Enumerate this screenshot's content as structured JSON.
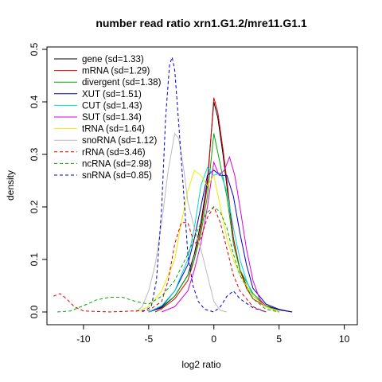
{
  "chart_data": {
    "type": "line",
    "title": "number read ratio xrn1.G1.2/mre11.G1.1",
    "xlabel": "log2 ratio",
    "ylabel": "density",
    "xlim": [
      -12.8,
      11.0
    ],
    "ylim": [
      0.0,
      0.5
    ],
    "xticks": [
      "-10",
      "-5",
      "0",
      "5",
      "10"
    ],
    "xtick_values": [
      -10,
      -5,
      0,
      5,
      10
    ],
    "yticks": [
      "0.0",
      "0.1",
      "0.2",
      "0.3",
      "0.4",
      "0.5"
    ],
    "ytick_values": [
      0.0,
      0.1,
      0.2,
      0.3,
      0.4,
      0.5
    ],
    "grid": false,
    "legend_position": "top-left",
    "series": [
      {
        "name": "gene (sd=1.33)",
        "color": "#000000",
        "dash": false,
        "points": [
          [
            -5,
            0
          ],
          [
            -4,
            0.008
          ],
          [
            -3,
            0.03
          ],
          [
            -2,
            0.07
          ],
          [
            -1.5,
            0.11
          ],
          [
            -1,
            0.17
          ],
          [
            -0.5,
            0.25
          ],
          [
            0,
            0.4
          ],
          [
            0.3,
            0.37
          ],
          [
            0.7,
            0.3
          ],
          [
            1,
            0.24
          ],
          [
            1.5,
            0.14
          ],
          [
            2,
            0.08
          ],
          [
            2.5,
            0.05
          ],
          [
            3,
            0.03
          ],
          [
            4,
            0.012
          ],
          [
            5,
            0.004
          ],
          [
            6,
            0
          ]
        ]
      },
      {
        "name": "mRNA (sd=1.29)",
        "color": "#dd0000",
        "dash": false,
        "points": [
          [
            -4.5,
            0
          ],
          [
            -4,
            0.006
          ],
          [
            -3,
            0.025
          ],
          [
            -2,
            0.06
          ],
          [
            -1.5,
            0.1
          ],
          [
            -1,
            0.16
          ],
          [
            -0.5,
            0.24
          ],
          [
            0,
            0.408
          ],
          [
            0.3,
            0.38
          ],
          [
            0.7,
            0.31
          ],
          [
            1,
            0.25
          ],
          [
            1.5,
            0.14
          ],
          [
            2,
            0.08
          ],
          [
            2.5,
            0.045
          ],
          [
            3,
            0.025
          ],
          [
            4,
            0.01
          ],
          [
            5,
            0
          ]
        ]
      },
      {
        "name": "divergent (sd=1.38)",
        "color": "#00aa00",
        "dash": false,
        "points": [
          [
            -5,
            0
          ],
          [
            -4,
            0.01
          ],
          [
            -3,
            0.03
          ],
          [
            -2,
            0.07
          ],
          [
            -1.5,
            0.1
          ],
          [
            -1,
            0.15
          ],
          [
            -0.5,
            0.22
          ],
          [
            0,
            0.34
          ],
          [
            0.5,
            0.28
          ],
          [
            1,
            0.22
          ],
          [
            1.5,
            0.13
          ],
          [
            2,
            0.08
          ],
          [
            3,
            0.035
          ],
          [
            4,
            0.012
          ],
          [
            5,
            0
          ]
        ]
      },
      {
        "name": "XUT (sd=1.51)",
        "color": "#0000cc",
        "dash": false,
        "points": [
          [
            -5,
            0
          ],
          [
            -4,
            0.01
          ],
          [
            -3,
            0.04
          ],
          [
            -2,
            0.09
          ],
          [
            -1.5,
            0.14
          ],
          [
            -1,
            0.2
          ],
          [
            -0.5,
            0.26
          ],
          [
            0,
            0.27
          ],
          [
            0.5,
            0.26
          ],
          [
            1,
            0.26
          ],
          [
            1.5,
            0.22
          ],
          [
            2,
            0.15
          ],
          [
            2.5,
            0.09
          ],
          [
            3,
            0.045
          ],
          [
            4,
            0.015
          ],
          [
            5,
            0.005
          ],
          [
            6,
            0
          ]
        ]
      },
      {
        "name": "CUT (sd=1.43)",
        "color": "#00d8d8",
        "dash": false,
        "points": [
          [
            -5,
            0
          ],
          [
            -4,
            0.012
          ],
          [
            -3,
            0.04
          ],
          [
            -2,
            0.1
          ],
          [
            -1.5,
            0.16
          ],
          [
            -1,
            0.24
          ],
          [
            -0.5,
            0.275
          ],
          [
            0,
            0.26
          ],
          [
            0.5,
            0.265
          ],
          [
            1,
            0.23
          ],
          [
            1.5,
            0.16
          ],
          [
            2,
            0.1
          ],
          [
            2.5,
            0.06
          ],
          [
            3,
            0.03
          ],
          [
            4,
            0.01
          ],
          [
            5,
            0
          ]
        ]
      },
      {
        "name": "SUT (sd=1.34)",
        "color": "#dd00dd",
        "dash": false,
        "points": [
          [
            -4,
            0
          ],
          [
            -3,
            0.01
          ],
          [
            -2,
            0.04
          ],
          [
            -1.5,
            0.08
          ],
          [
            -1,
            0.13
          ],
          [
            -0.5,
            0.2
          ],
          [
            0,
            0.285
          ],
          [
            0.4,
            0.26
          ],
          [
            0.8,
            0.27
          ],
          [
            1.2,
            0.295
          ],
          [
            1.6,
            0.26
          ],
          [
            2,
            0.2
          ],
          [
            2.5,
            0.12
          ],
          [
            3,
            0.06
          ],
          [
            3.5,
            0.025
          ],
          [
            4,
            0.01
          ],
          [
            5,
            0
          ]
        ]
      },
      {
        "name": "tRNA (sd=1.64)",
        "color": "#eeee00",
        "dash": false,
        "points": [
          [
            -6,
            0
          ],
          [
            -5,
            0.01
          ],
          [
            -4,
            0.04
          ],
          [
            -3,
            0.1
          ],
          [
            -2.5,
            0.17
          ],
          [
            -2,
            0.23
          ],
          [
            -1.5,
            0.27
          ],
          [
            -1,
            0.26
          ],
          [
            -0.5,
            0.24
          ],
          [
            0,
            0.26
          ],
          [
            0.5,
            0.2
          ],
          [
            1,
            0.14
          ],
          [
            1.5,
            0.1
          ],
          [
            2,
            0.07
          ],
          [
            3,
            0.03
          ],
          [
            4,
            0.01
          ],
          [
            5,
            0
          ]
        ]
      },
      {
        "name": "snoRNA (sd=1.12)",
        "color": "#bbbbbb",
        "dash": false,
        "points": [
          [
            -6,
            0
          ],
          [
            -5.5,
            0.01
          ],
          [
            -5,
            0.04
          ],
          [
            -4.5,
            0.09
          ],
          [
            -4,
            0.17
          ],
          [
            -3.5,
            0.27
          ],
          [
            -3,
            0.34
          ],
          [
            -2.7,
            0.33
          ],
          [
            -2.3,
            0.27
          ],
          [
            -2,
            0.21
          ],
          [
            -1.5,
            0.16
          ],
          [
            -1,
            0.12
          ],
          [
            -0.5,
            0.07
          ],
          [
            0,
            0.02
          ],
          [
            0.5,
            0.003
          ],
          [
            1,
            0
          ]
        ]
      },
      {
        "name": "rRNA (sd=3.46)",
        "color": "#dd0000",
        "dash": true,
        "points": [
          [
            -12.3,
            0.03
          ],
          [
            -11.8,
            0.035
          ],
          [
            -11.3,
            0.025
          ],
          [
            -10.7,
            0.01
          ],
          [
            -10,
            0.002
          ],
          [
            -8,
            0
          ],
          [
            -5,
            0.003
          ],
          [
            -4,
            0.02
          ],
          [
            -3.5,
            0.06
          ],
          [
            -3,
            0.13
          ],
          [
            -2.5,
            0.17
          ],
          [
            -2,
            0.17
          ],
          [
            -1.5,
            0.13
          ],
          [
            -1,
            0.14
          ],
          [
            -0.5,
            0.18
          ],
          [
            0,
            0.2
          ],
          [
            0.5,
            0.17
          ],
          [
            1,
            0.12
          ],
          [
            1.5,
            0.07
          ],
          [
            2,
            0.04
          ],
          [
            3,
            0.01
          ],
          [
            4,
            0
          ]
        ]
      },
      {
        "name": "ncRNA (sd=2.98)",
        "color": "#00aa00",
        "dash": true,
        "points": [
          [
            -12,
            0
          ],
          [
            -11,
            0.002
          ],
          [
            -10,
            0.012
          ],
          [
            -9,
            0.023
          ],
          [
            -8,
            0.028
          ],
          [
            -7,
            0.028
          ],
          [
            -6,
            0.02
          ],
          [
            -5,
            0.015
          ],
          [
            -4,
            0.03
          ],
          [
            -3,
            0.06
          ],
          [
            -2,
            0.11
          ],
          [
            -1,
            0.17
          ],
          [
            -0.5,
            0.19
          ],
          [
            0,
            0.2
          ],
          [
            0.5,
            0.19
          ],
          [
            1,
            0.16
          ],
          [
            1.5,
            0.11
          ],
          [
            2,
            0.07
          ],
          [
            3,
            0.025
          ],
          [
            4,
            0.005
          ],
          [
            5,
            0
          ]
        ]
      },
      {
        "name": "snRNA (sd=0.85)",
        "color": "#0000cc",
        "dash": true,
        "points": [
          [
            -5.5,
            0
          ],
          [
            -4.8,
            0.01
          ],
          [
            -4.4,
            0.06
          ],
          [
            -4,
            0.2
          ],
          [
            -3.7,
            0.37
          ],
          [
            -3.4,
            0.47
          ],
          [
            -3.2,
            0.485
          ],
          [
            -3.0,
            0.46
          ],
          [
            -2.7,
            0.36
          ],
          [
            -2.3,
            0.22
          ],
          [
            -2,
            0.11
          ],
          [
            -1.6,
            0.05
          ],
          [
            -1.2,
            0.02
          ],
          [
            -0.7,
            0.005
          ],
          [
            0,
            0
          ],
          [
            0.5,
            0.01
          ],
          [
            1,
            0.03
          ],
          [
            1.5,
            0.04
          ],
          [
            2,
            0.025
          ],
          [
            3,
            0.008
          ],
          [
            4,
            0
          ]
        ]
      }
    ]
  }
}
